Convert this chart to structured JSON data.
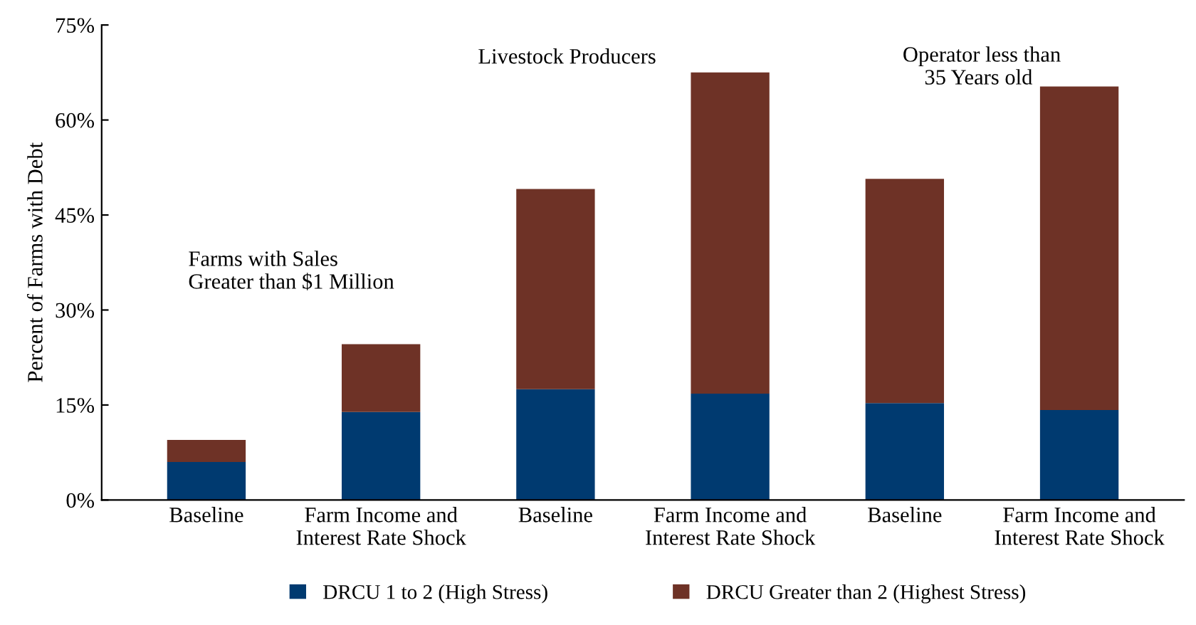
{
  "chart_data": {
    "type": "bar",
    "stacked": true,
    "ylabel": "Percent of Farms with Debt",
    "categories": [
      "Baseline",
      "Farm Income and\nInterest Rate Shock",
      "Baseline",
      "Farm Income and\nInterest Rate Shock",
      "Baseline",
      "Farm Income and\nInterest Rate Shock"
    ],
    "series": [
      {
        "name": "DRCU 1 to 2 (High Stress)",
        "color": "#003a70",
        "values": [
          6.0,
          13.9,
          17.5,
          16.8,
          15.3,
          14.2
        ]
      },
      {
        "name": "DRCU Greater than 2 (Highest Stress)",
        "color": "#6e3226",
        "values": [
          3.5,
          10.7,
          31.6,
          50.7,
          35.4,
          51.1
        ]
      }
    ],
    "ylim": [
      0,
      75
    ],
    "yticks": [
      {
        "value": 0,
        "label": "0%"
      },
      {
        "value": 15,
        "label": "15%"
      },
      {
        "value": 30,
        "label": "30%"
      },
      {
        "value": 45,
        "label": "45%"
      },
      {
        "value": 60,
        "label": "60%"
      },
      {
        "value": 75,
        "label": "75%"
      }
    ],
    "annotations": [
      "Farms with Sales\nGreater than $1 Million",
      "Livestock Producers",
      "Operator less than\n    35 Years old"
    ],
    "grid": false,
    "legend": "bottom"
  }
}
